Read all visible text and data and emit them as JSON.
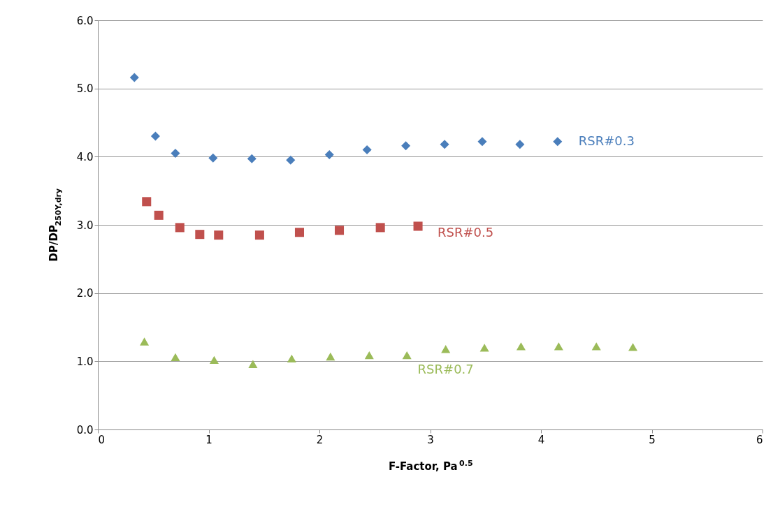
{
  "chart_data": {
    "type": "scatter",
    "xlabel": "F-Factor, Pa$^{0.5}$",
    "ylabel": "DP/DP$_{250Y,dry}$",
    "xlim": [
      0,
      6
    ],
    "xticks": [
      0,
      1,
      2,
      3,
      4,
      5,
      6
    ],
    "ylim": [
      0,
      6
    ],
    "yticks": [
      {
        "value": 0,
        "label": "0.0"
      },
      {
        "value": 1,
        "label": "1.0"
      },
      {
        "value": 2,
        "label": "2.0"
      },
      {
        "value": 3,
        "label": "3.0"
      },
      {
        "value": 4,
        "label": "4.0"
      },
      {
        "value": 5,
        "label": "5.0"
      },
      {
        "value": 6,
        "label": "6.0"
      }
    ],
    "grid": "y",
    "legend": false,
    "series": [
      {
        "name": "RSR#0.3",
        "color": "#4a7ebb",
        "marker": "diamond",
        "x": [
          0.33,
          0.52,
          0.7,
          1.04,
          1.39,
          1.74,
          2.09,
          2.43,
          2.78,
          3.13,
          3.47,
          3.81,
          4.15
        ],
        "values": [
          5.16,
          4.3,
          4.05,
          3.98,
          3.97,
          3.95,
          4.03,
          4.1,
          4.16,
          4.18,
          4.22,
          4.18,
          4.22
        ]
      },
      {
        "name": "RSR#0.5",
        "color": "#c0504d",
        "marker": "square",
        "x": [
          0.44,
          0.55,
          0.74,
          0.92,
          1.09,
          1.46,
          1.82,
          2.18,
          2.55,
          2.89
        ],
        "values": [
          3.34,
          3.14,
          2.96,
          2.86,
          2.85,
          2.85,
          2.89,
          2.92,
          2.96,
          2.98
        ]
      },
      {
        "name": "RSR#0.7",
        "color": "#9bbb59",
        "marker": "triangle",
        "x": [
          0.42,
          0.7,
          1.05,
          1.4,
          1.75,
          2.1,
          2.45,
          2.79,
          3.14,
          3.49,
          3.82,
          4.16,
          4.5,
          4.83
        ],
        "values": [
          1.29,
          1.06,
          1.02,
          0.96,
          1.04,
          1.07,
          1.09,
          1.09,
          1.18,
          1.2,
          1.22,
          1.22,
          1.22,
          1.21
        ]
      }
    ]
  }
}
